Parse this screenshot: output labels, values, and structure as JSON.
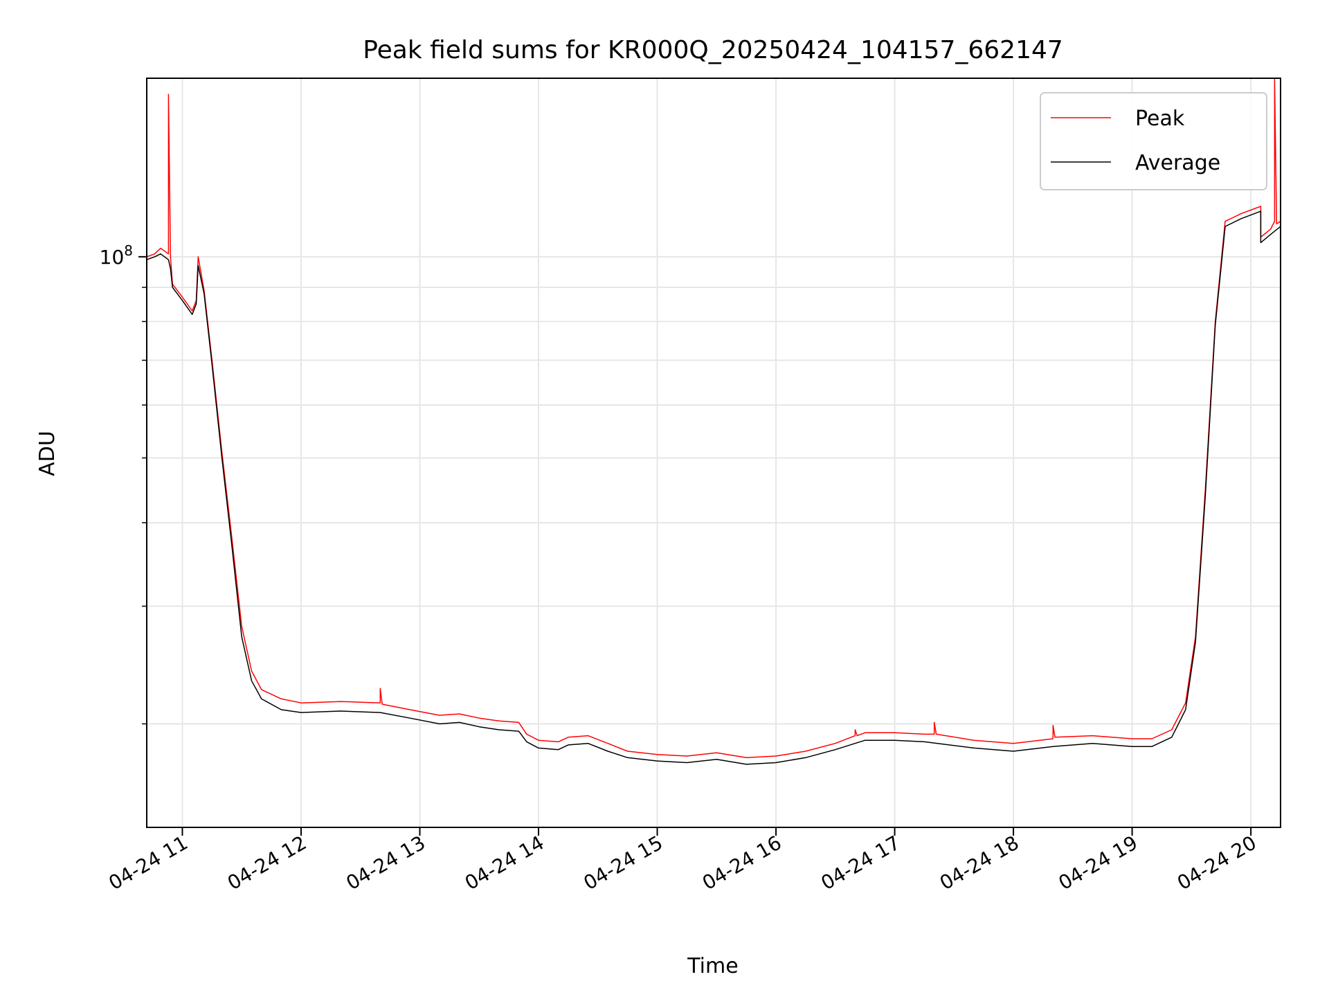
{
  "chart_data": {
    "type": "line",
    "title": "Peak field sums for KR000Q_20250424_104157_662147",
    "xlabel": "Time",
    "ylabel": "ADU",
    "xlim": [
      "2025-04-24 10:42",
      "2025-04-24 20:15"
    ],
    "ylim": [
      14000000,
      185000000
    ],
    "y_scale": "log",
    "grid": true,
    "legend_position": "upper-right",
    "x_ticks": [
      {
        "value": "2025-04-24 11:00",
        "label": "04-24 11"
      },
      {
        "value": "2025-04-24 12:00",
        "label": "04-24 12"
      },
      {
        "value": "2025-04-24 13:00",
        "label": "04-24 13"
      },
      {
        "value": "2025-04-24 14:00",
        "label": "04-24 14"
      },
      {
        "value": "2025-04-24 15:00",
        "label": "04-24 15"
      },
      {
        "value": "2025-04-24 16:00",
        "label": "04-24 16"
      },
      {
        "value": "2025-04-24 17:00",
        "label": "04-24 17"
      },
      {
        "value": "2025-04-24 18:00",
        "label": "04-24 18"
      },
      {
        "value": "2025-04-24 19:00",
        "label": "04-24 19"
      },
      {
        "value": "2025-04-24 20:00",
        "label": "04-24 20"
      }
    ],
    "y_major_ticks": [
      {
        "value": 100000000,
        "base": "10",
        "exp": "8"
      }
    ],
    "y_minor_ticks": [
      20000000,
      30000000,
      40000000,
      50000000,
      60000000,
      70000000,
      80000000,
      90000000
    ],
    "colors": {
      "peak": "#ff0000",
      "average": "#000000"
    },
    "series": [
      {
        "name": "Peak",
        "points": [
          [
            "2025-04-24 10:42",
            100000000
          ],
          [
            "2025-04-24 10:46",
            101000000
          ],
          [
            "2025-04-24 10:49",
            103000000
          ],
          [
            "2025-04-24 10:53",
            101000000
          ],
          [
            "2025-04-24 10:53",
            175000000
          ],
          [
            "2025-04-24 10:54",
            100000000
          ],
          [
            "2025-04-24 10:55",
            91000000
          ],
          [
            "2025-04-24 11:00",
            87000000
          ],
          [
            "2025-04-24 11:05",
            83000000
          ],
          [
            "2025-04-24 11:07",
            86000000
          ],
          [
            "2025-04-24 11:08",
            100000000
          ],
          [
            "2025-04-24 11:11",
            89000000
          ],
          [
            "2025-04-24 11:15",
            70000000
          ],
          [
            "2025-04-24 11:20",
            51000000
          ],
          [
            "2025-04-24 11:25",
            38000000
          ],
          [
            "2025-04-24 11:30",
            28000000
          ],
          [
            "2025-04-24 11:35",
            24000000
          ],
          [
            "2025-04-24 11:40",
            22500000
          ],
          [
            "2025-04-24 11:50",
            21800000
          ],
          [
            "2025-04-24 12:00",
            21500000
          ],
          [
            "2025-04-24 12:20",
            21600000
          ],
          [
            "2025-04-24 12:40",
            21500000
          ],
          [
            "2025-04-24 12:40",
            22600000
          ],
          [
            "2025-04-24 12:41",
            21400000
          ],
          [
            "2025-04-24 12:55",
            21000000
          ],
          [
            "2025-04-24 13:10",
            20600000
          ],
          [
            "2025-04-24 13:20",
            20700000
          ],
          [
            "2025-04-24 13:30",
            20400000
          ],
          [
            "2025-04-24 13:40",
            20200000
          ],
          [
            "2025-04-24 13:50",
            20100000
          ],
          [
            "2025-04-24 13:54",
            19300000
          ],
          [
            "2025-04-24 14:00",
            18900000
          ],
          [
            "2025-04-24 14:10",
            18800000
          ],
          [
            "2025-04-24 14:15",
            19100000
          ],
          [
            "2025-04-24 14:25",
            19200000
          ],
          [
            "2025-04-24 14:35",
            18700000
          ],
          [
            "2025-04-24 14:45",
            18200000
          ],
          [
            "2025-04-24 15:00",
            18000000
          ],
          [
            "2025-04-24 15:15",
            17900000
          ],
          [
            "2025-04-24 15:30",
            18100000
          ],
          [
            "2025-04-24 15:45",
            17800000
          ],
          [
            "2025-04-24 16:00",
            17900000
          ],
          [
            "2025-04-24 16:15",
            18200000
          ],
          [
            "2025-04-24 16:30",
            18700000
          ],
          [
            "2025-04-24 16:40",
            19200000
          ],
          [
            "2025-04-24 16:40",
            19600000
          ],
          [
            "2025-04-24 16:41",
            19200000
          ],
          [
            "2025-04-24 16:45",
            19400000
          ],
          [
            "2025-04-24 17:00",
            19400000
          ],
          [
            "2025-04-24 17:15",
            19300000
          ],
          [
            "2025-04-24 17:20",
            19300000
          ],
          [
            "2025-04-24 17:20",
            20100000
          ],
          [
            "2025-04-24 17:21",
            19300000
          ],
          [
            "2025-04-24 17:40",
            18900000
          ],
          [
            "2025-04-24 18:00",
            18700000
          ],
          [
            "2025-04-24 18:20",
            19000000
          ],
          [
            "2025-04-24 18:20",
            19900000
          ],
          [
            "2025-04-24 18:21",
            19100000
          ],
          [
            "2025-04-24 18:40",
            19200000
          ],
          [
            "2025-04-24 19:00",
            19000000
          ],
          [
            "2025-04-24 19:10",
            19000000
          ],
          [
            "2025-04-24 19:20",
            19600000
          ],
          [
            "2025-04-24 19:27",
            21500000
          ],
          [
            "2025-04-24 19:32",
            27000000
          ],
          [
            "2025-04-24 19:37",
            45000000
          ],
          [
            "2025-04-24 19:42",
            80000000
          ],
          [
            "2025-04-24 19:47",
            113000000
          ],
          [
            "2025-04-24 19:55",
            116000000
          ],
          [
            "2025-04-24 20:05",
            119000000
          ],
          [
            "2025-04-24 20:05",
            107000000
          ],
          [
            "2025-04-24 20:10",
            110000000
          ],
          [
            "2025-04-24 20:12",
            113000000
          ],
          [
            "2025-04-24 20:12",
            185000000
          ],
          [
            "2025-04-24 20:13",
            112000000
          ],
          [
            "2025-04-24 20:15",
            113000000
          ]
        ]
      },
      {
        "name": "Average",
        "points": [
          [
            "2025-04-24 10:42",
            99000000
          ],
          [
            "2025-04-24 10:46",
            100000000
          ],
          [
            "2025-04-24 10:49",
            101000000
          ],
          [
            "2025-04-24 10:53",
            99000000
          ],
          [
            "2025-04-24 10:54",
            96000000
          ],
          [
            "2025-04-24 10:55",
            90000000
          ],
          [
            "2025-04-24 11:00",
            86000000
          ],
          [
            "2025-04-24 11:05",
            82000000
          ],
          [
            "2025-04-24 11:07",
            85000000
          ],
          [
            "2025-04-24 11:08",
            97000000
          ],
          [
            "2025-04-24 11:11",
            88000000
          ],
          [
            "2025-04-24 11:15",
            69000000
          ],
          [
            "2025-04-24 11:20",
            50000000
          ],
          [
            "2025-04-24 11:25",
            37000000
          ],
          [
            "2025-04-24 11:30",
            27000000
          ],
          [
            "2025-04-24 11:35",
            23200000
          ],
          [
            "2025-04-24 11:40",
            21800000
          ],
          [
            "2025-04-24 11:50",
            21000000
          ],
          [
            "2025-04-24 12:00",
            20800000
          ],
          [
            "2025-04-24 12:20",
            20900000
          ],
          [
            "2025-04-24 12:40",
            20800000
          ],
          [
            "2025-04-24 12:55",
            20400000
          ],
          [
            "2025-04-24 13:10",
            20000000
          ],
          [
            "2025-04-24 13:20",
            20100000
          ],
          [
            "2025-04-24 13:30",
            19800000
          ],
          [
            "2025-04-24 13:40",
            19600000
          ],
          [
            "2025-04-24 13:50",
            19500000
          ],
          [
            "2025-04-24 13:54",
            18800000
          ],
          [
            "2025-04-24 14:00",
            18400000
          ],
          [
            "2025-04-24 14:10",
            18300000
          ],
          [
            "2025-04-24 14:15",
            18600000
          ],
          [
            "2025-04-24 14:25",
            18700000
          ],
          [
            "2025-04-24 14:35",
            18200000
          ],
          [
            "2025-04-24 14:45",
            17800000
          ],
          [
            "2025-04-24 15:00",
            17600000
          ],
          [
            "2025-04-24 15:15",
            17500000
          ],
          [
            "2025-04-24 15:30",
            17700000
          ],
          [
            "2025-04-24 15:45",
            17400000
          ],
          [
            "2025-04-24 16:00",
            17500000
          ],
          [
            "2025-04-24 16:15",
            17800000
          ],
          [
            "2025-04-24 16:30",
            18300000
          ],
          [
            "2025-04-24 16:45",
            18900000
          ],
          [
            "2025-04-24 17:00",
            18900000
          ],
          [
            "2025-04-24 17:15",
            18800000
          ],
          [
            "2025-04-24 17:40",
            18400000
          ],
          [
            "2025-04-24 18:00",
            18200000
          ],
          [
            "2025-04-24 18:20",
            18500000
          ],
          [
            "2025-04-24 18:40",
            18700000
          ],
          [
            "2025-04-24 19:00",
            18500000
          ],
          [
            "2025-04-24 19:10",
            18500000
          ],
          [
            "2025-04-24 19:20",
            19100000
          ],
          [
            "2025-04-24 19:27",
            21000000
          ],
          [
            "2025-04-24 19:32",
            26500000
          ],
          [
            "2025-04-24 19:37",
            44000000
          ],
          [
            "2025-04-24 19:42",
            79000000
          ],
          [
            "2025-04-24 19:47",
            111000000
          ],
          [
            "2025-04-24 19:55",
            114000000
          ],
          [
            "2025-04-24 20:05",
            117000000
          ],
          [
            "2025-04-24 20:05",
            105000000
          ],
          [
            "2025-04-24 20:10",
            108000000
          ],
          [
            "2025-04-24 20:15",
            111000000
          ]
        ]
      }
    ]
  }
}
